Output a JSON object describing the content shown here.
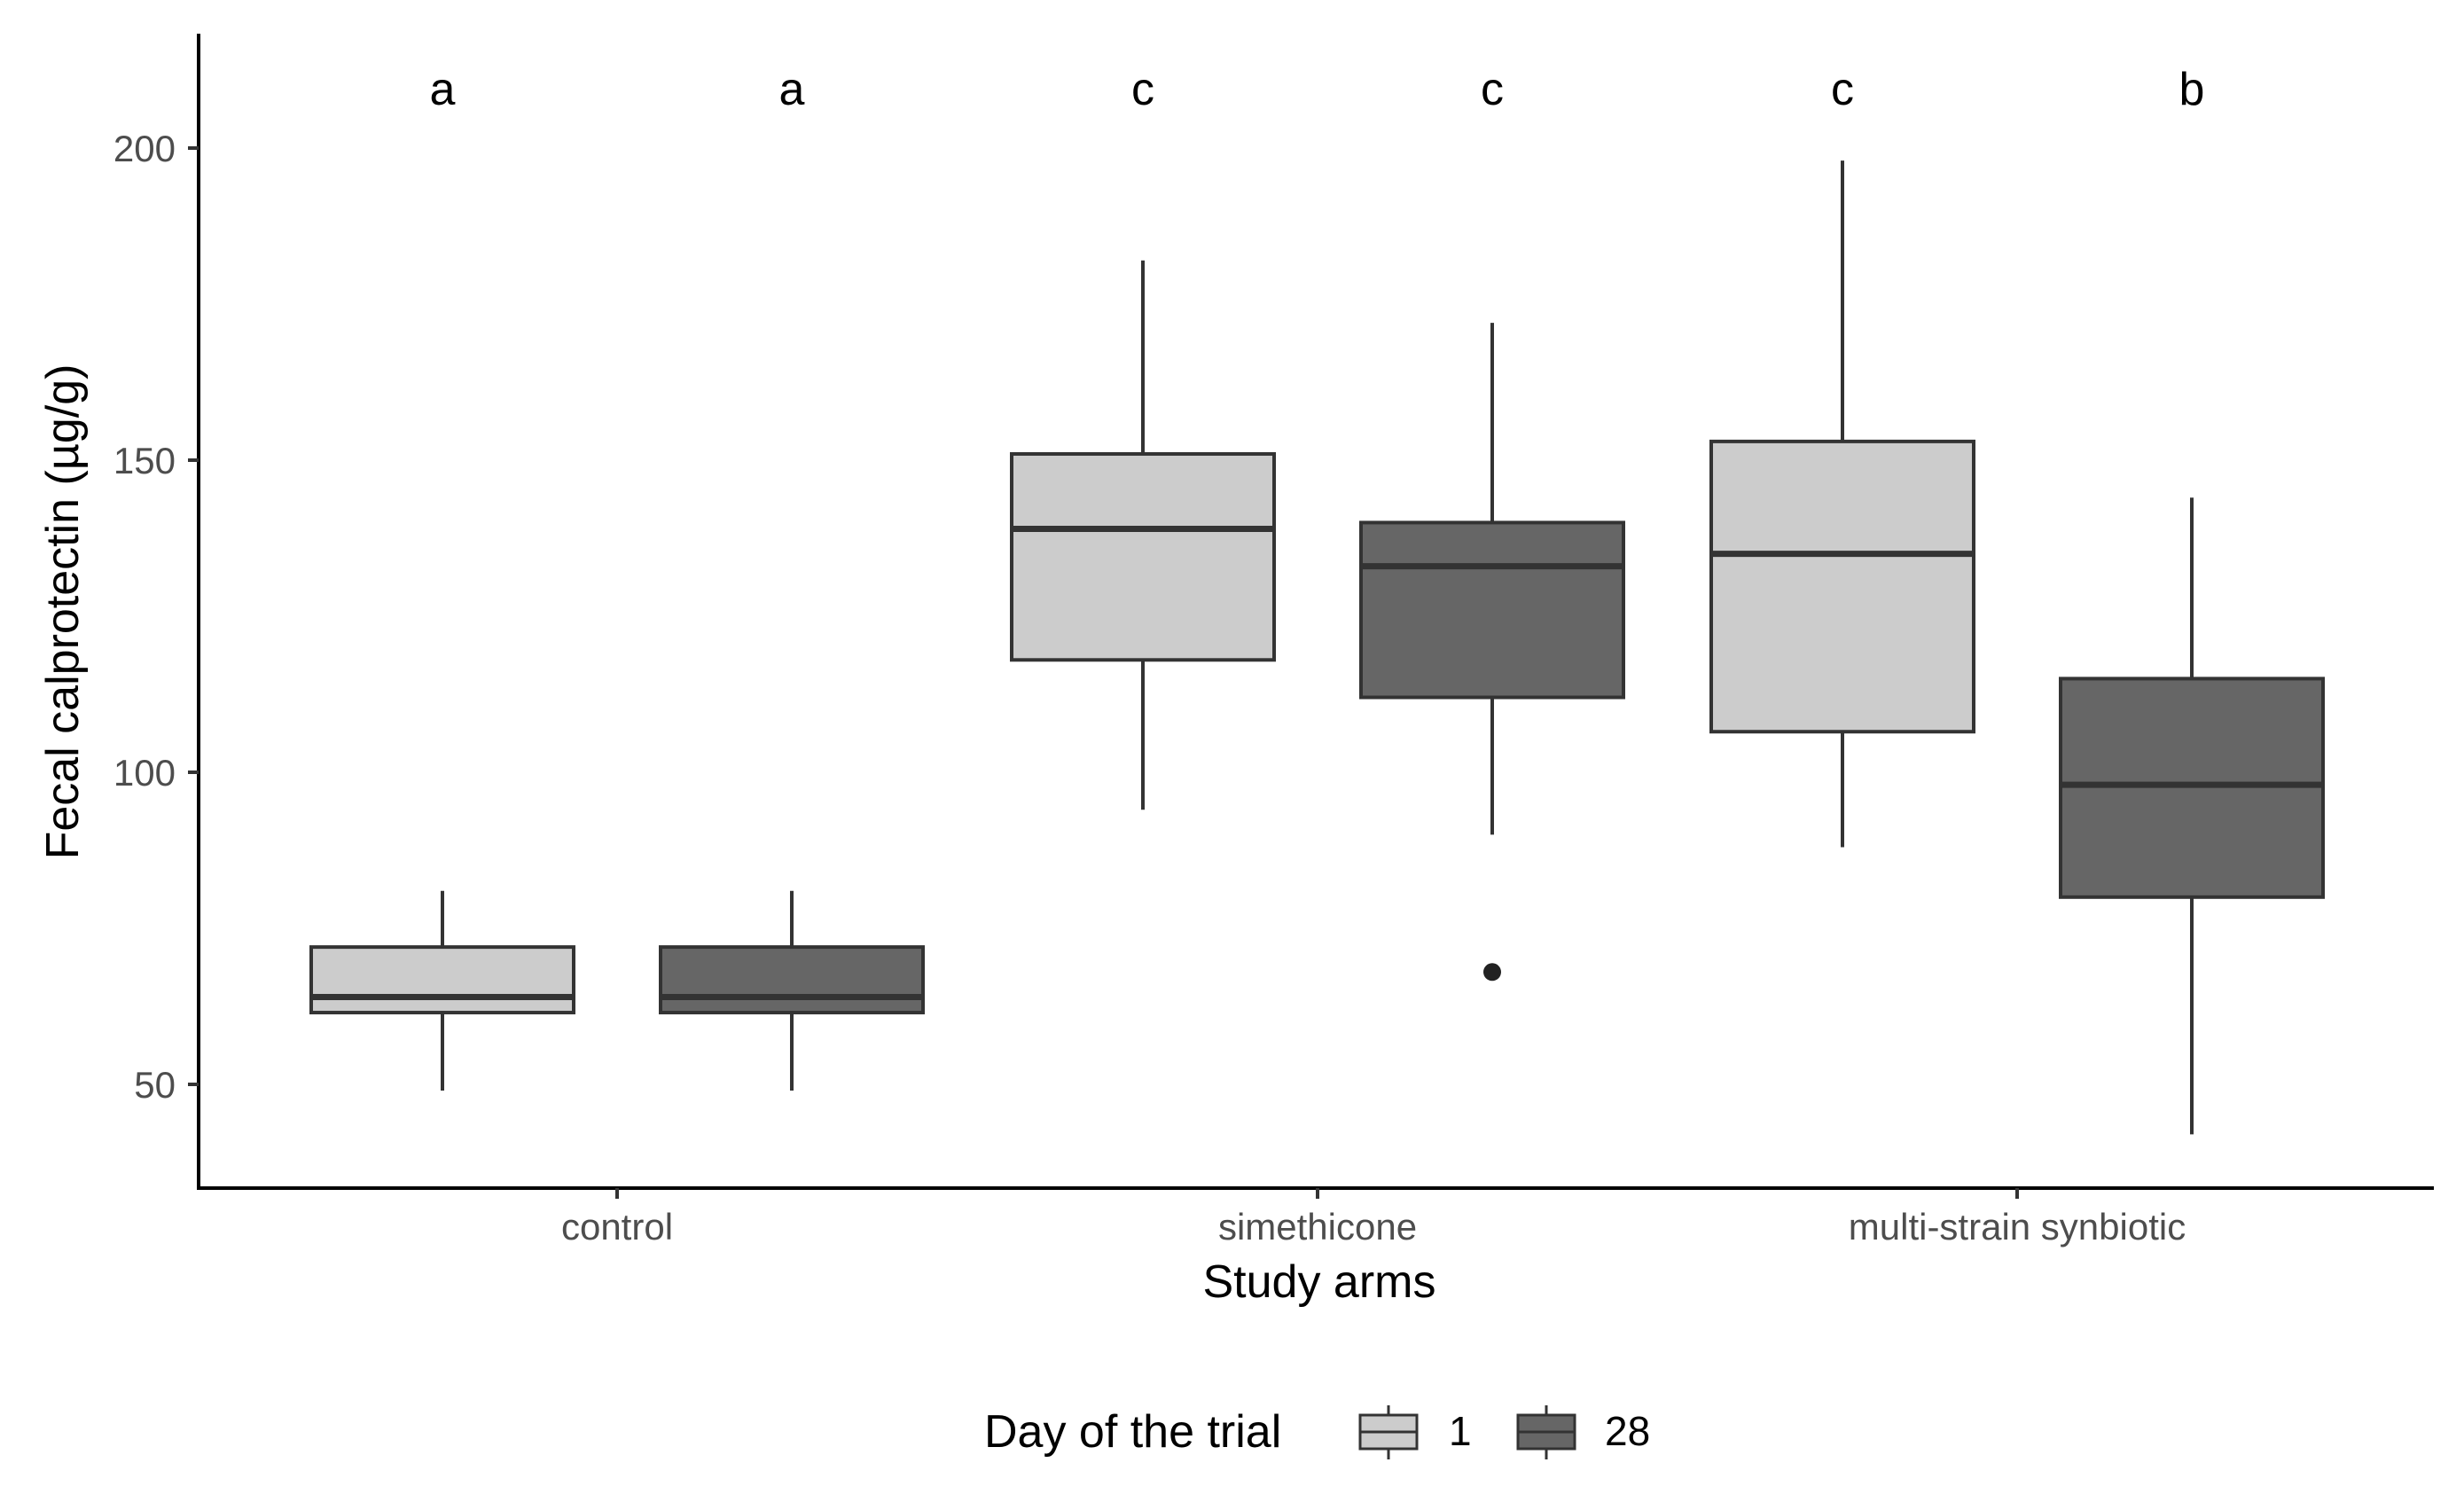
{
  "chart_data": {
    "type": "boxplot",
    "xlabel": "Study arms",
    "ylabel": "Fecal calprotectin (µg/g)",
    "ylim": [
      33,
      218
    ],
    "yticks": [
      50,
      100,
      150,
      200
    ],
    "grid": false,
    "categories": [
      "control",
      "simethicone",
      "multi-strain synbiotic"
    ],
    "legend": {
      "title": "Day of the trial",
      "position": "bottom",
      "entries": [
        {
          "label": "1",
          "color": "#cccccc"
        },
        {
          "label": "28",
          "color": "#666666"
        }
      ]
    },
    "boxes": [
      {
        "category": "control",
        "group": "1",
        "whisker_low": 49,
        "q1": 61.5,
        "median": 64,
        "q3": 72,
        "whisker_high": 81,
        "outliers": [],
        "letter": "a"
      },
      {
        "category": "control",
        "group": "28",
        "whisker_low": 49,
        "q1": 61.5,
        "median": 64,
        "q3": 72,
        "whisker_high": 81,
        "outliers": [],
        "letter": "a"
      },
      {
        "category": "simethicone",
        "group": "1",
        "whisker_low": 94,
        "q1": 118,
        "median": 139,
        "q3": 151,
        "whisker_high": 182,
        "outliers": [],
        "letter": "c"
      },
      {
        "category": "simethicone",
        "group": "28",
        "whisker_low": 90,
        "q1": 112,
        "median": 133,
        "q3": 140,
        "whisker_high": 172,
        "outliers": [
          68
        ],
        "letter": "c"
      },
      {
        "category": "multi-strain synbiotic",
        "group": "1",
        "whisker_low": 88,
        "q1": 106.5,
        "median": 135,
        "q3": 153,
        "whisker_high": 198,
        "outliers": [],
        "letter": "c"
      },
      {
        "category": "multi-strain synbiotic",
        "group": "28",
        "whisker_low": 42,
        "q1": 80,
        "median": 98,
        "q3": 115,
        "whisker_high": 144,
        "outliers": [],
        "letter": "b"
      }
    ]
  }
}
